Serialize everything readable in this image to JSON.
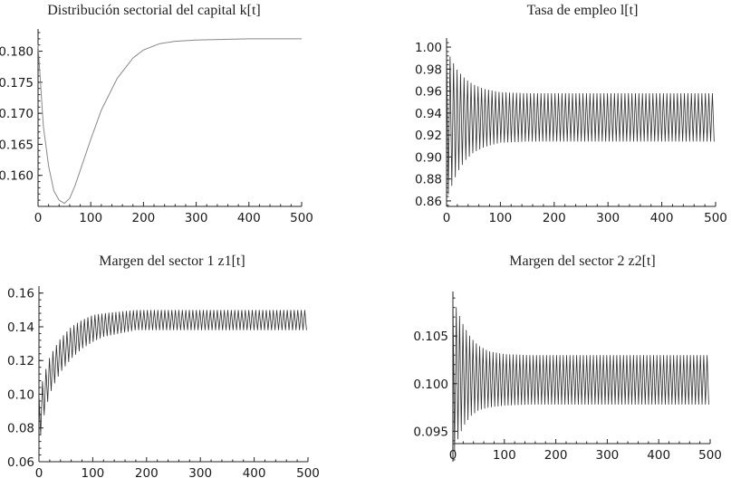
{
  "chart_data": [
    {
      "id": "k",
      "type": "line",
      "title": "Distribución sectorial del capital k[t]",
      "xlabel": "",
      "ylabel": "",
      "xlim": [
        0,
        500
      ],
      "ylim": [
        0.155,
        0.183
      ],
      "x_ticks": [
        0,
        100,
        200,
        300,
        400,
        500
      ],
      "y_ticks": [
        0.16,
        0.165,
        0.17,
        0.175,
        0.18
      ],
      "x_tick_labels": [
        "0",
        "100",
        "200",
        "300",
        "400",
        "500"
      ],
      "y_tick_labels": [
        "0.160",
        "0.165",
        "0.170",
        "0.175",
        "0.180"
      ],
      "grid": false,
      "series": [
        {
          "shape": "smooth",
          "x": [
            0,
            5,
            10,
            20,
            30,
            40,
            50,
            60,
            70,
            80,
            100,
            120,
            150,
            180,
            200,
            230,
            260,
            300,
            350,
            400,
            450,
            500
          ],
          "y": [
            0.181,
            0.1745,
            0.168,
            0.1615,
            0.1575,
            0.156,
            0.1555,
            0.1563,
            0.1583,
            0.1608,
            0.1658,
            0.1705,
            0.1756,
            0.1789,
            0.1802,
            0.1812,
            0.1816,
            0.1818,
            0.1819,
            0.182,
            0.182,
            0.182
          ]
        }
      ]
    },
    {
      "id": "l",
      "type": "line",
      "title": "Tasa de empleo l[t]",
      "xlabel": "",
      "ylabel": "",
      "xlim": [
        0,
        500
      ],
      "ylim": [
        0.855,
        1.005
      ],
      "x_ticks": [
        0,
        100,
        200,
        300,
        400,
        500
      ],
      "y_ticks": [
        0.86,
        0.88,
        0.9,
        0.92,
        0.94,
        0.96,
        0.98,
        1.0
      ],
      "x_tick_labels": [
        "0",
        "100",
        "200",
        "300",
        "400",
        "500"
      ],
      "y_tick_labels": [
        "0.86",
        "0.88",
        "0.90",
        "0.92",
        "0.94",
        "0.96",
        "0.98",
        "1.00"
      ],
      "grid": false,
      "series": [
        {
          "shape": "oscillation",
          "period": 6.5,
          "x": [
            0,
            10,
            20,
            35,
            50,
            70,
            100,
            150,
            200,
            300,
            400,
            500
          ],
          "upper": [
            0.998,
            0.988,
            0.979,
            0.971,
            0.966,
            0.962,
            0.959,
            0.958,
            0.958,
            0.958,
            0.958,
            0.958
          ],
          "lower": [
            0.862,
            0.874,
            0.886,
            0.897,
            0.904,
            0.909,
            0.913,
            0.914,
            0.914,
            0.914,
            0.914,
            0.914
          ]
        }
      ]
    },
    {
      "id": "z1",
      "type": "line",
      "title": "Margen del sector 1 z1[t]",
      "xlabel": "",
      "ylabel": "",
      "xlim": [
        0,
        500
      ],
      "ylim": [
        0.06,
        0.162
      ],
      "x_ticks": [
        0,
        100,
        200,
        300,
        400,
        500
      ],
      "y_ticks": [
        0.06,
        0.08,
        0.1,
        0.12,
        0.14,
        0.16
      ],
      "x_tick_labels": [
        "0",
        "100",
        "200",
        "300",
        "400",
        "500"
      ],
      "y_tick_labels": [
        "0.06",
        "0.08",
        "0.10",
        "0.12",
        "0.14",
        "0.16"
      ],
      "grid": false,
      "series": [
        {
          "shape": "oscillation",
          "period": 6.5,
          "x": [
            0,
            10,
            20,
            30,
            40,
            60,
            80,
            100,
            120,
            150,
            180,
            200,
            300,
            400,
            500
          ],
          "upper": [
            0.1,
            0.112,
            0.122,
            0.128,
            0.133,
            0.14,
            0.144,
            0.147,
            0.148,
            0.149,
            0.15,
            0.15,
            0.15,
            0.15,
            0.15
          ],
          "lower": [
            0.07,
            0.088,
            0.1,
            0.107,
            0.113,
            0.121,
            0.127,
            0.131,
            0.134,
            0.136,
            0.138,
            0.138,
            0.138,
            0.138,
            0.138
          ]
        }
      ]
    },
    {
      "id": "z2",
      "type": "line",
      "title": "Margen del sector 2 z2[t]",
      "xlabel": "",
      "ylabel": "",
      "xlim": [
        0,
        500
      ],
      "ylim": [
        0.0918,
        0.1093
      ],
      "x_ticks": [
        0,
        100,
        200,
        300,
        400,
        500
      ],
      "y_ticks": [
        0.095,
        0.1,
        0.105
      ],
      "x_tick_labels": [
        "0",
        "100",
        "200",
        "300",
        "400",
        "500"
      ],
      "y_tick_labels": [
        "0.095",
        "0.100",
        "0.105"
      ],
      "grid": false,
      "series": [
        {
          "shape": "oscillation",
          "period": 6.5,
          "x": [
            0,
            10,
            20,
            35,
            50,
            70,
            100,
            150,
            200,
            300,
            400,
            500
          ],
          "upper": [
            0.109,
            0.1075,
            0.1062,
            0.1048,
            0.104,
            0.1034,
            0.1031,
            0.103,
            0.103,
            0.103,
            0.103,
            0.103
          ],
          "lower": [
            0.0925,
            0.0942,
            0.0955,
            0.0966,
            0.0972,
            0.0975,
            0.0977,
            0.0978,
            0.0978,
            0.0978,
            0.0978,
            0.0978
          ]
        }
      ]
    }
  ]
}
